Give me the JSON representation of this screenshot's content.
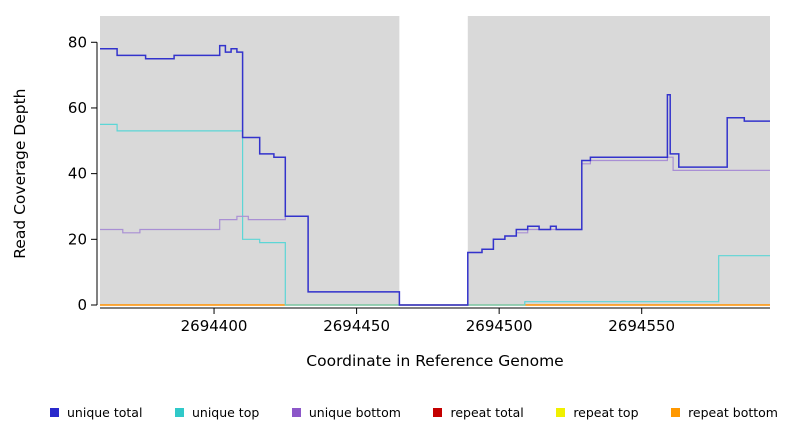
{
  "chart_data": {
    "type": "line",
    "step": true,
    "title": "",
    "xlabel": "Coordinate in Reference Genome",
    "ylabel": "Read Coverage Depth",
    "xlim": [
      2694360,
      2694595
    ],
    "ylim": [
      0,
      88
    ],
    "xticks": [
      2694400,
      2694450,
      2694500,
      2694550
    ],
    "yticks": [
      0,
      20,
      40,
      60,
      80
    ],
    "plot_bg": "#d9d9d9",
    "axis_color": "#000000",
    "gap_region": {
      "x0": 2694465,
      "x1": 2694489,
      "color": "#ffffff"
    },
    "series": [
      {
        "name": "repeat total",
        "color": "#cc0000",
        "width": 1,
        "points": [
          [
            2694360,
            0
          ]
        ]
      },
      {
        "name": "repeat top",
        "color": "#f2f200",
        "width": 1,
        "points": [
          [
            2694360,
            0
          ]
        ]
      },
      {
        "name": "repeat bottom",
        "color": "#ff9100",
        "width": 1.5,
        "points": [
          [
            2694360,
            0
          ]
        ]
      },
      {
        "name": "unique top",
        "color": "#5cd6d6",
        "width": 1.2,
        "points": [
          [
            2694360,
            55
          ],
          [
            2694366,
            53
          ],
          [
            2694404,
            53
          ],
          [
            2694410,
            20
          ],
          [
            2694416,
            19
          ],
          [
            2694425,
            0
          ],
          [
            2694509,
            1
          ],
          [
            2694577,
            15
          ]
        ]
      },
      {
        "name": "unique bottom",
        "color": "#a98fd4",
        "width": 1.2,
        "points": [
          [
            2694360,
            23
          ],
          [
            2694368,
            22
          ],
          [
            2694374,
            23
          ],
          [
            2694402,
            26
          ],
          [
            2694408,
            27
          ],
          [
            2694412,
            26
          ],
          [
            2694420,
            26
          ],
          [
            2694425,
            27
          ],
          [
            2694433,
            4
          ],
          [
            2694465,
            0
          ],
          [
            2694489,
            16
          ],
          [
            2694494,
            17
          ],
          [
            2694498,
            20
          ],
          [
            2694502,
            21
          ],
          [
            2694506,
            22
          ],
          [
            2694510,
            23
          ],
          [
            2694529,
            43
          ],
          [
            2694532,
            44
          ],
          [
            2694559,
            45
          ],
          [
            2694561,
            41
          ]
        ]
      },
      {
        "name": "unique total",
        "color": "#3333cc",
        "width": 1.5,
        "points": [
          [
            2694360,
            78
          ],
          [
            2694366,
            76
          ],
          [
            2694376,
            75
          ],
          [
            2694386,
            76
          ],
          [
            2694402,
            79
          ],
          [
            2694404,
            77
          ],
          [
            2694406,
            78
          ],
          [
            2694408,
            77
          ],
          [
            2694410,
            51
          ],
          [
            2694416,
            46
          ],
          [
            2694421,
            45
          ],
          [
            2694425,
            27
          ],
          [
            2694433,
            4
          ],
          [
            2694465,
            0
          ],
          [
            2694489,
            16
          ],
          [
            2694494,
            17
          ],
          [
            2694498,
            20
          ],
          [
            2694502,
            21
          ],
          [
            2694506,
            23
          ],
          [
            2694510,
            24
          ],
          [
            2694514,
            23
          ],
          [
            2694518,
            24
          ],
          [
            2694520,
            23
          ],
          [
            2694529,
            44
          ],
          [
            2694532,
            45
          ],
          [
            2694559,
            64
          ],
          [
            2694560,
            46
          ],
          [
            2694563,
            42
          ],
          [
            2694580,
            57
          ],
          [
            2694586,
            56
          ]
        ]
      }
    ],
    "legend": [
      {
        "label": "unique total",
        "color": "#2929cc"
      },
      {
        "label": "unique top",
        "color": "#30c9c9"
      },
      {
        "label": "unique bottom",
        "color": "#8c57c9"
      },
      {
        "label": "repeat total",
        "color": "#c40000"
      },
      {
        "label": "repeat top",
        "color": "#f0f000"
      },
      {
        "label": "repeat bottom",
        "color": "#ff9800"
      }
    ]
  }
}
